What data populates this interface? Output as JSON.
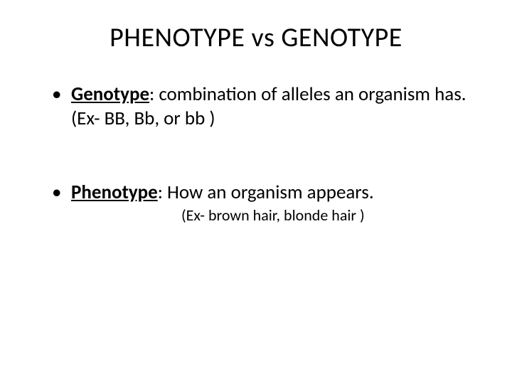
{
  "slide": {
    "title": "PHENOTYPE vs GENOTYPE",
    "background_color": "#ffffff",
    "text_color": "#000000",
    "title_fontsize": 38,
    "body_fontsize": 27,
    "sub_fontsize": 22,
    "font_family": "Calibri",
    "bullets": [
      {
        "term": "Genotype",
        "definition": ": combination of alleles an organism has.  (Ex-    BB, Bb, or bb  )",
        "sub_example": null
      },
      {
        "term": "Phenotype",
        "definition": ": How an organism appears.",
        "sub_example": "(Ex- brown hair, blonde hair )"
      }
    ]
  }
}
